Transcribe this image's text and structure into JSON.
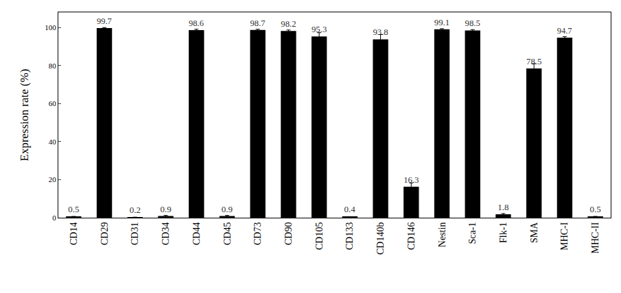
{
  "chart_data": {
    "type": "bar",
    "y_label": "Expression rate (%)",
    "categories": [
      "CD14",
      "CD29",
      "CD31",
      "CD34",
      "CD44",
      "CD45",
      "CD73",
      "CD90",
      "CD105",
      "CD133",
      "CD140b",
      "CD146",
      "Nestin",
      "Sca-1",
      "Flk-1",
      "SMA",
      "MHC-I",
      "MHC-II"
    ],
    "values": [
      0.5,
      99.7,
      0.2,
      0.9,
      98.6,
      0.9,
      98.7,
      98.2,
      95.3,
      0.4,
      93.8,
      16.3,
      99.1,
      98.5,
      1.8,
      78.5,
      94.7,
      0.5
    ],
    "errors": [
      0.2,
      0.3,
      0.1,
      0.3,
      0.5,
      0.3,
      0.4,
      0.5,
      2.0,
      0.1,
      2.5,
      2.0,
      0.3,
      0.4,
      0.4,
      2.5,
      0.5,
      0.2
    ],
    "color": "#000000",
    "ylim": [
      0,
      108
    ],
    "yticks": [
      0,
      20,
      40,
      60,
      80,
      100
    ],
    "grid": false,
    "data_labels": true
  }
}
